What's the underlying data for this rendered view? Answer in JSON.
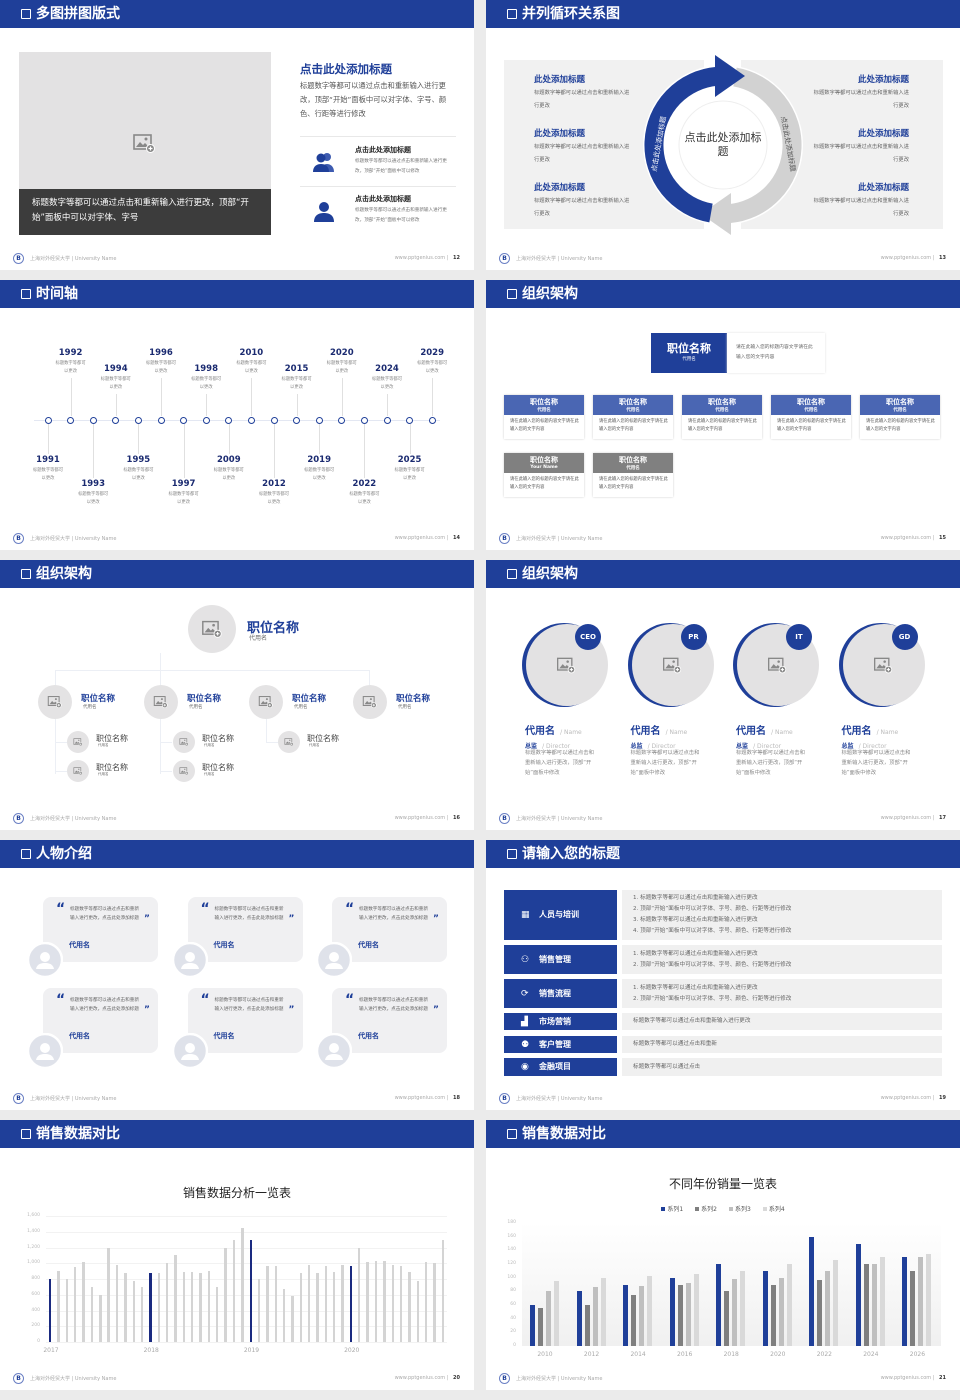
{
  "footer": {
    "university": "上海对外经贸大学 | University Name",
    "website": "www.pptgenius.com",
    "logo_letter": "B"
  },
  "colors": {
    "primary": "#1f3f99",
    "header": "#1f3f99",
    "gray_box": "#f0f0f0",
    "placeholder": "#e3e2e3"
  },
  "s12": {
    "title": "多图拼图版式",
    "page": "12",
    "image_caption": "标题数字等都可以通过点击和重新输入进行更改，顶部“开始”面板中可以对字体、字号",
    "heading": "点击此处添加标题",
    "paragraph": "标题数字等都可以通过点击和重新输入进行更改，顶部“开始”面板中可以对字体、字号、颜色、行距等进行修改",
    "items": [
      {
        "icon": "users-icon",
        "title": "点击此处添加标题",
        "text": "标题数字等都可以通过点击和重新输入进行更改，顶部“开始”面板中可以修改"
      },
      {
        "icon": "user-icon",
        "title": "点击此处添加标题",
        "text": "标题数字等都可以通过点击和重新输入进行更改，顶部“开始”面板中可以修改"
      }
    ]
  },
  "s13": {
    "title": "并列循环关系图",
    "page": "13",
    "center": "点击此处添加标题",
    "arc_left": "点击此处添加标题",
    "arc_right": "点击此处添加标题",
    "left_items": [
      {
        "title": "此处添加标题",
        "text": "标题数字等都可以通过点击和重新输入进行更改"
      },
      {
        "title": "此处添加标题",
        "text": "标题数字等都可以通过点击和重新输入进行更改"
      },
      {
        "title": "此处添加标题",
        "text": "标题数字等都可以通过点击和重新输入进行更改"
      }
    ],
    "right_items": [
      {
        "title": "此处添加标题",
        "text": "标题数字等都可以通过点击和重新输入进行更改"
      },
      {
        "title": "此处添加标题",
        "text": "标题数字等都可以通过点击和重新输入进行更改"
      },
      {
        "title": "此处添加标题",
        "text": "标题数字等都可以通过点击和重新输入进行更改"
      }
    ]
  },
  "s14": {
    "title": "时间轴",
    "page": "14",
    "events": [
      {
        "year": "1991",
        "text": "标题数字等都可以更改",
        "side": "bottom",
        "level": "near"
      },
      {
        "year": "1992",
        "text": "标题数字等都可以更改",
        "side": "top",
        "level": "far"
      },
      {
        "year": "1993",
        "text": "标题数字等都可以更改",
        "side": "bottom",
        "level": "far"
      },
      {
        "year": "1994",
        "text": "标题数字等都可以更改",
        "side": "top",
        "level": "near"
      },
      {
        "year": "1995",
        "text": "标题数字等都可以更改",
        "side": "bottom",
        "level": "near"
      },
      {
        "year": "1996",
        "text": "标题数字等都可以更改",
        "side": "top",
        "level": "far"
      },
      {
        "year": "1997",
        "text": "标题数字等都可以更改",
        "side": "bottom",
        "level": "far"
      },
      {
        "year": "1998",
        "text": "标题数字等都可以更改",
        "side": "top",
        "level": "near"
      },
      {
        "year": "2009",
        "text": "标题数字等都可以更改",
        "side": "bottom",
        "level": "near"
      },
      {
        "year": "2010",
        "text": "标题数字等都可以更改",
        "side": "top",
        "level": "far"
      },
      {
        "year": "2012",
        "text": "标题数字等都可以更改",
        "side": "bottom",
        "level": "far"
      },
      {
        "year": "2015",
        "text": "标题数字等都可以更改",
        "side": "top",
        "level": "near"
      },
      {
        "year": "2019",
        "text": "标题数字等都可以更改",
        "side": "bottom",
        "level": "near"
      },
      {
        "year": "2020",
        "text": "标题数字等都可以更改",
        "side": "top",
        "level": "far"
      },
      {
        "year": "2022",
        "text": "标题数字等都可以更改",
        "side": "bottom",
        "level": "far"
      },
      {
        "year": "2024",
        "text": "标题数字等都可以更改",
        "side": "top",
        "level": "near"
      },
      {
        "year": "2025",
        "text": "标题数字等都可以更改",
        "side": "bottom",
        "level": "near"
      },
      {
        "year": "2029",
        "text": "标题数字等都可以更改",
        "side": "top",
        "level": "far"
      }
    ]
  },
  "s15": {
    "title": "组织架构",
    "page": "15",
    "top": {
      "name": "职位名称",
      "sub": "代用名",
      "text": "请在此输入您的标题内容文字请在此输入您的文字内容"
    },
    "cards": [
      {
        "name": "职位名称",
        "sub": "代用名",
        "text": "请在此输入您的标题内容文字请在此输入您的文字内容",
        "tone": "blue"
      },
      {
        "name": "职位名称",
        "sub": "代用名",
        "text": "请在此输入您的标题内容文字请在此输入您的文字内容",
        "tone": "blue"
      },
      {
        "name": "职位名称",
        "sub": "代用名",
        "text": "请在此输入您的标题内容文字请在此输入您的文字内容",
        "tone": "blue"
      },
      {
        "name": "职位名称",
        "sub": "代用名",
        "text": "请在此输入您的标题内容文字请在此输入您的文字内容",
        "tone": "blue"
      },
      {
        "name": "职位名称",
        "sub": "代用名",
        "text": "请在此输入您的标题内容文字请在此输入您的文字内容",
        "tone": "blue"
      },
      {
        "name": "职位名称",
        "sub": "Your Name",
        "text": "请在此输入您的标题内容文字请在此输入您的文字内容",
        "tone": "gray"
      },
      {
        "name": "职位名称",
        "sub": "代用名",
        "text": "请在此输入您的标题内容文字请在此输入您的文字内容",
        "tone": "gray"
      }
    ]
  },
  "s16": {
    "title": "组织架构",
    "page": "16",
    "top": {
      "name": "职位名称",
      "sub": "代用名"
    },
    "branches": [
      {
        "name": "职位名称",
        "sub": "代用名",
        "children": [
          {
            "name": "职位名称",
            "sub": "代用名"
          },
          {
            "name": "职位名称",
            "sub": "代用名"
          }
        ]
      },
      {
        "name": "职位名称",
        "sub": "代用名",
        "children": [
          {
            "name": "职位名称",
            "sub": "代用名"
          },
          {
            "name": "职位名称",
            "sub": "代用名"
          }
        ]
      },
      {
        "name": "职位名称",
        "sub": "代用名",
        "children": [
          {
            "name": "职位名称",
            "sub": "代用名"
          }
        ]
      },
      {
        "name": "职位名称",
        "sub": "代用名",
        "children": []
      }
    ]
  },
  "s17": {
    "title": "组织架构",
    "page": "17",
    "people": [
      {
        "badge": "CEO",
        "name": "代用名",
        "name_en": "/ Name",
        "role": "总监",
        "role_en": "/  Director",
        "text": "标题数字等都可以通过点击和重新输入进行更改，顶部“开始”面板中修改"
      },
      {
        "badge": "PR",
        "name": "代用名",
        "name_en": "/ Name",
        "role": "总监",
        "role_en": "/  Director",
        "text": "标题数字等都可以通过点击和重新输入进行更改，顶部“开始”面板中修改"
      },
      {
        "badge": "IT",
        "name": "代用名",
        "name_en": "/ Name",
        "role": "总监",
        "role_en": "/  Director",
        "text": "标题数字等都可以通过点击和重新输入进行更改，顶部“开始”面板中修改"
      },
      {
        "badge": "GD",
        "name": "代用名",
        "name_en": "/ Name",
        "role": "总监",
        "role_en": "/  Director",
        "text": "标题数字等都可以通过点击和重新输入进行更改，顶部“开始”面板中修改"
      }
    ]
  },
  "s18": {
    "title": "人物介绍",
    "page": "18",
    "quotes": [
      {
        "text": "标题数字等都可以通过点击和重新输入进行更改，点击此处添加标题",
        "name": "代用名"
      },
      {
        "text": "标题数字等都可以通过点击和重新输入进行更改，点击此处添加标题",
        "name": "代用名"
      },
      {
        "text": "标题数字等都可以通过点击和重新输入进行更改，点击此处添加标题",
        "name": "代用名"
      },
      {
        "text": "标题数字等都可以通过点击和重新输入进行更改，点击此处添加标题",
        "name": "代用名"
      },
      {
        "text": "标题数字等都可以通过点击和重新输入进行更改，点击此处添加标题",
        "name": "代用名"
      },
      {
        "text": "标题数字等都可以通过点击和重新输入进行更改，点击此处添加标题",
        "name": "代用名"
      }
    ],
    "open_quote": "“",
    "close_quote": "”"
  },
  "s19": {
    "title": "请输入您的标题",
    "page": "19",
    "rows": [
      {
        "icon": "training-icon",
        "glyph": "▦",
        "label": "人员与培训",
        "lines": [
          "1.   标题数字等都可以通过点击和重新输入进行更改",
          "2.   顶部“开始”面板中可以对字体、字号、颜色、行距等进行修改",
          "3.   标题数字等都可以通过点击和重新输入进行更改",
          "4.   顶部“开始”面板中可以对字体、字号、颜色、行距等进行修改"
        ]
      },
      {
        "icon": "user-manage-icon",
        "glyph": "⚇",
        "label": "销售管理",
        "lines": [
          "1.   标题数字等都可以通过点击和重新输入进行更改",
          "2.   顶部“开始”面板中可以对字体、字号、颜色、行距等进行修改"
        ]
      },
      {
        "icon": "cycle-icon",
        "glyph": "⟳",
        "label": "销售流程",
        "lines": [
          "1.   标题数字等都可以通过点击和重新输入进行更改",
          "2.   顶部“开始”面板中可以对字体、字号、颜色、行距等进行修改"
        ]
      },
      {
        "icon": "bar-chart-icon",
        "glyph": "▟",
        "label": "市场营销",
        "lines": [
          "标题数字等都可以通过点击和重新输入进行更改"
        ]
      },
      {
        "icon": "group-icon",
        "glyph": "⚉",
        "label": "客户管理",
        "lines": [
          "标题数字等都可以通过点击和重新"
        ]
      },
      {
        "icon": "finance-icon",
        "glyph": "◉",
        "label": "金融项目",
        "lines": [
          "标题数字等都可以通过点击"
        ]
      }
    ]
  },
  "s20": {
    "title": "销售数据对比",
    "page": "20"
  },
  "s21": {
    "title": "销售数据对比",
    "page": "21"
  },
  "chart_data": [
    {
      "type": "bar",
      "title": "销售数据分析一览表",
      "x_labels": [
        "2017",
        "2018",
        "2019",
        "2020"
      ],
      "groups": [
        {
          "label": "2017",
          "values": [
            800,
            900,
            800,
            950,
            1020,
            700,
            600,
            1200,
            980,
            880,
            780,
            700
          ]
        },
        {
          "label": "2018",
          "values": [
            880,
            880,
            1000,
            1100,
            890,
            890,
            880,
            900,
            700,
            1200,
            1300,
            1450
          ]
        },
        {
          "label": "2019",
          "values": [
            1300,
            800,
            960,
            970,
            670,
            590,
            880,
            980,
            870,
            960,
            890,
            980
          ]
        },
        {
          "label": "2020",
          "values": [
            960,
            1200,
            1020,
            1030,
            1030,
            980,
            970,
            890,
            780,
            1020,
            1000,
            1300
          ]
        }
      ],
      "y_ticks": [
        "0",
        "200",
        "400",
        "600",
        "800",
        "1,000",
        "1,200",
        "1,400",
        "1,600"
      ],
      "ylim": [
        0,
        1600
      ],
      "grid": true,
      "highlight_color": "#1a2a80",
      "bar_color": "#d4d4d4"
    },
    {
      "type": "bar",
      "title": "不同年份销量一览表",
      "categories": [
        "2010",
        "2012",
        "2014",
        "2016",
        "2018",
        "2020",
        "2022",
        "2024",
        "2026"
      ],
      "series": [
        {
          "name": "系列1",
          "color": "#1f3f99",
          "values": [
            60,
            80,
            90,
            100,
            120,
            110,
            160,
            150,
            130
          ]
        },
        {
          "name": "系列2",
          "color": "#7f7f7f",
          "values": [
            55,
            60,
            75,
            90,
            80,
            90,
            96,
            120,
            110
          ]
        },
        {
          "name": "系列3",
          "color": "#bfbfbf",
          "values": [
            80,
            86,
            88,
            92,
            98,
            100,
            110,
            120,
            130
          ]
        },
        {
          "name": "系列4",
          "color": "#d9d9d9",
          "values": [
            95,
            99,
            102,
            105,
            110,
            120,
            126,
            130,
            135
          ]
        }
      ],
      "y_ticks": [
        "0",
        "20",
        "40",
        "60",
        "80",
        "100",
        "120",
        "140",
        "160",
        "180"
      ],
      "ylim": [
        0,
        180
      ],
      "legend": "top",
      "grid": false
    }
  ]
}
